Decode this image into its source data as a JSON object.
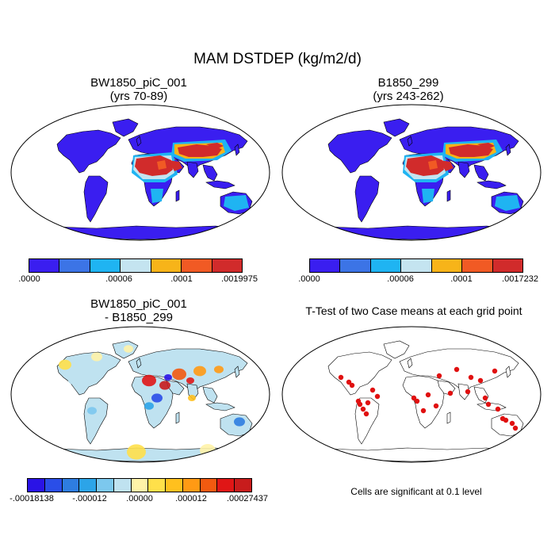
{
  "main_title": "MAM DSTDEP (kg/m2/d)",
  "panels": [
    {
      "title_line1": "BW1850_piC_001",
      "title_line2": "(yrs 70-89)"
    },
    {
      "title_line1": "B1850_299",
      "title_line2": "(yrs 243-262)"
    },
    {
      "title_line1": "BW1850_piC_001",
      "title_line2": "- B1850_299"
    },
    {
      "title_line1": "T-Test of two Case means at each grid point",
      "title_line2": ""
    }
  ],
  "colorbars": [
    {
      "colors": [
        "#3a1ef0",
        "#3c74e6",
        "#1fb4f2",
        "#c4e4f0",
        "#f7b419",
        "#f15a24",
        "#d12b2b"
      ],
      "labels": [
        ".0000",
        ".00006",
        ".0001",
        ".0019975"
      ]
    },
    {
      "colors": [
        "#3a1ef0",
        "#3c74e6",
        "#1fb4f2",
        "#c4e4f0",
        "#f7b419",
        "#f15a24",
        "#d12b2b"
      ],
      "labels": [
        ".0000",
        ".00006",
        ".0001",
        ".0017232"
      ]
    },
    {
      "colors": [
        "#2a13e6",
        "#2a4ee8",
        "#2e7de0",
        "#2ca4e8",
        "#7cc8ee",
        "#bfe2f0",
        "#fff3a8",
        "#ffe04a",
        "#ffc01e",
        "#ff9a14",
        "#f25a10",
        "#e01616",
        "#c81c1c"
      ],
      "labels": [
        "-.00018138",
        "-.000012",
        ".00000",
        ".000012",
        ".00027437"
      ]
    }
  ],
  "significance_note": "Cells are significant at 0.1 level",
  "colors": {
    "land_low": "#3a1ef0",
    "dust_high": "#d12b2b",
    "significant": "#e01010",
    "diff_land": "#bfe2f0",
    "diff_ocean": "#ffffff"
  }
}
